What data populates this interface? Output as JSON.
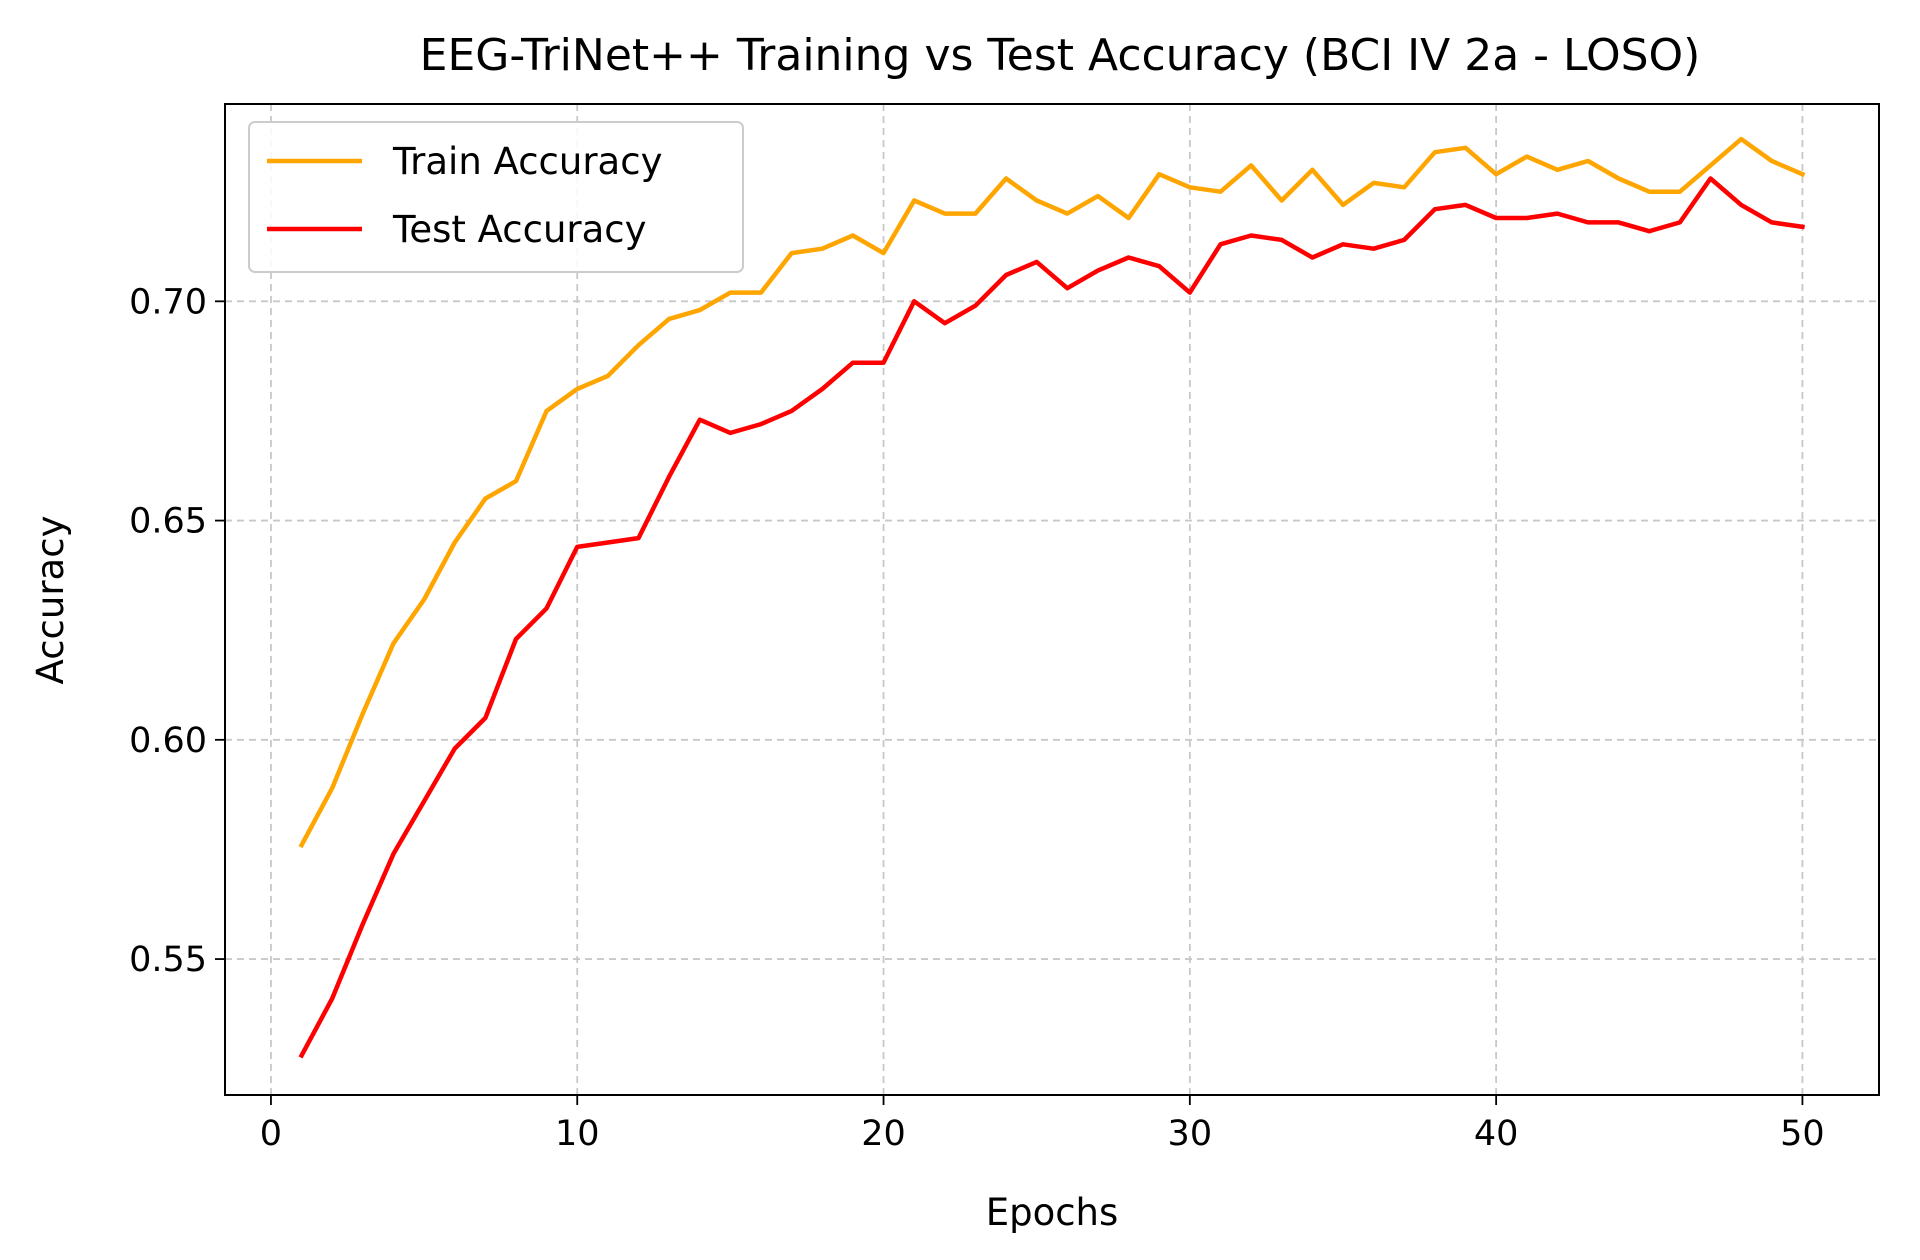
{
  "chart_data": {
    "type": "line",
    "title": "EEG-TriNet++ Training vs Test Accuracy (BCI IV 2a - LOSO)",
    "xlabel": "Epochs",
    "ylabel": "Accuracy",
    "xlim": [
      -1.5,
      52.5
    ],
    "ylim": [
      0.519,
      0.745
    ],
    "xticks": [
      0,
      10,
      20,
      30,
      40,
      50
    ],
    "yticks": [
      0.55,
      0.6,
      0.65,
      0.7
    ],
    "xtick_labels": [
      "0",
      "10",
      "20",
      "30",
      "40",
      "50"
    ],
    "ytick_labels": [
      "0.55",
      "0.60",
      "0.65",
      "0.70"
    ],
    "grid": true,
    "legend_position": "top-left",
    "x": [
      1,
      2,
      3,
      4,
      5,
      6,
      7,
      8,
      9,
      10,
      11,
      12,
      13,
      14,
      15,
      16,
      17,
      18,
      19,
      20,
      21,
      22,
      23,
      24,
      25,
      26,
      27,
      28,
      29,
      30,
      31,
      32,
      33,
      34,
      35,
      36,
      37,
      38,
      39,
      40,
      41,
      42,
      43,
      44,
      45,
      46,
      47,
      48,
      49,
      50
    ],
    "series": [
      {
        "name": "Train Accuracy",
        "color": "#FFA500",
        "values": [
          0.576,
          0.589,
          0.606,
          0.622,
          0.632,
          0.645,
          0.655,
          0.659,
          0.675,
          0.68,
          0.683,
          0.69,
          0.696,
          0.698,
          0.702,
          0.702,
          0.711,
          0.712,
          0.715,
          0.711,
          0.723,
          0.72,
          0.72,
          0.728,
          0.723,
          0.72,
          0.724,
          0.719,
          0.729,
          0.726,
          0.725,
          0.731,
          0.723,
          0.73,
          0.722,
          0.727,
          0.726,
          0.734,
          0.735,
          0.729,
          0.733,
          0.73,
          0.732,
          0.728,
          0.725,
          0.725,
          0.731,
          0.737,
          0.732,
          0.729
        ]
      },
      {
        "name": "Test Accuracy",
        "color": "#FF0000",
        "values": [
          0.528,
          0.541,
          0.558,
          0.574,
          0.586,
          0.598,
          0.605,
          0.623,
          0.63,
          0.644,
          0.645,
          0.646,
          0.66,
          0.673,
          0.67,
          0.672,
          0.675,
          0.68,
          0.686,
          0.686,
          0.7,
          0.695,
          0.699,
          0.706,
          0.709,
          0.703,
          0.707,
          0.71,
          0.708,
          0.702,
          0.713,
          0.715,
          0.714,
          0.71,
          0.713,
          0.712,
          0.714,
          0.721,
          0.722,
          0.719,
          0.719,
          0.72,
          0.718,
          0.718,
          0.716,
          0.718,
          0.728,
          0.722,
          0.718,
          0.717
        ]
      }
    ]
  }
}
